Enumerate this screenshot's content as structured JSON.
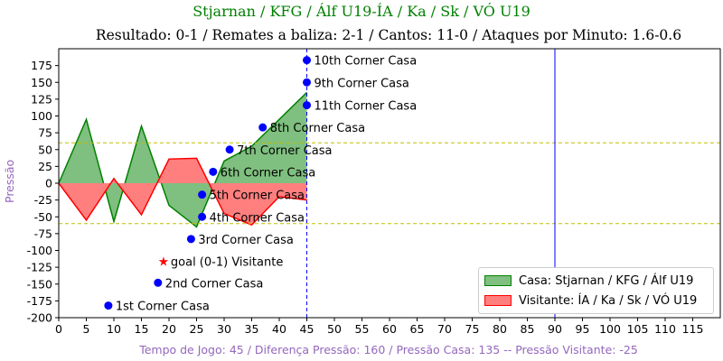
{
  "header": {
    "title": "Stjarnan / KFG / Álf U19-ÍA / Ka / Sk / VÓ U19",
    "subtitle": "Resultado: 0-1 / Remates a baliza: 2-1 / Cantos: 11-0 / Ataques por Minuto: 1.6-0.6"
  },
  "chart_data": {
    "type": "area",
    "title": "Stjarnan / KFG / Álf U19-ÍA / Ka / Sk / VÓ U19",
    "subtitle": "Resultado: 0-1 / Remates a baliza: 2-1 / Cantos: 11-0 / Ataques por Minuto: 1.6-0.6",
    "xlabel": "Tempo de Jogo: 45 / Diferença Pressão: 160 / Pressão Casa: 135 -- Pressão Visitante: -25",
    "ylabel": "Pressão",
    "xlim": [
      0,
      120
    ],
    "ylim": [
      -200,
      200
    ],
    "xticks": [
      0,
      5,
      10,
      15,
      20,
      25,
      30,
      35,
      40,
      45,
      50,
      55,
      60,
      65,
      70,
      75,
      80,
      85,
      90,
      95,
      100,
      105,
      110,
      115
    ],
    "yticks": [
      175,
      150,
      125,
      100,
      75,
      50,
      25,
      0,
      -25,
      -50,
      -75,
      -100,
      -125,
      -150,
      -175,
      -200
    ],
    "series": [
      {
        "name": "Casa: Stjarnan / KFG / Álf U19",
        "color": "#008000",
        "fill": "#7fbf7f",
        "x": [
          0,
          5,
          10,
          15,
          20,
          25,
          30,
          35,
          40,
          45
        ],
        "y": [
          0,
          95,
          -57,
          85,
          -33,
          -65,
          33,
          55,
          95,
          135
        ]
      },
      {
        "name": "Visitante: ÍA / Ka / Sk / VÓ U19",
        "color": "#ff0000",
        "fill": "#ff7f7f",
        "x": [
          0,
          5,
          10,
          15,
          20,
          25,
          30,
          35,
          40,
          45
        ],
        "y": [
          0,
          -55,
          7,
          -47,
          36,
          37,
          -45,
          -62,
          -20,
          -25
        ]
      }
    ],
    "hlines": [
      {
        "y": 60,
        "color": "#bfbf00",
        "style": "dashed"
      },
      {
        "y": -60,
        "color": "#bfbf00",
        "style": "dashed"
      }
    ],
    "vlines": [
      {
        "x": 45,
        "color": "#0000ff",
        "style": "dashed"
      },
      {
        "x": 90,
        "color": "#0000ff",
        "style": "solid"
      }
    ],
    "events": [
      {
        "x": 9,
        "y": -182,
        "label": "1st Corner Casa",
        "marker": "dot",
        "color": "#0000ff"
      },
      {
        "x": 18,
        "y": -148,
        "label": "2nd Corner Casa",
        "marker": "dot",
        "color": "#0000ff"
      },
      {
        "x": 19,
        "y": -116,
        "label": "goal (0-1) Visitante",
        "marker": "star",
        "color": "#ff0000"
      },
      {
        "x": 24,
        "y": -83,
        "label": "3rd Corner Casa",
        "marker": "dot",
        "color": "#0000ff"
      },
      {
        "x": 26,
        "y": -50,
        "label": "4th Corner Casa",
        "marker": "dot",
        "color": "#0000ff"
      },
      {
        "x": 26,
        "y": -17,
        "label": "5th Corner Casa",
        "marker": "dot",
        "color": "#0000ff"
      },
      {
        "x": 28,
        "y": 17,
        "label": "6th Corner Casa",
        "marker": "dot",
        "color": "#0000ff"
      },
      {
        "x": 31,
        "y": 50,
        "label": "7th Corner Casa",
        "marker": "dot",
        "color": "#0000ff"
      },
      {
        "x": 37,
        "y": 83,
        "label": "8th Corner Casa",
        "marker": "dot",
        "color": "#0000ff"
      },
      {
        "x": 45,
        "y": 183,
        "label": "10th Corner Casa",
        "marker": "dot",
        "color": "#0000ff"
      },
      {
        "x": 45,
        "y": 150,
        "label": "9th Corner Casa",
        "marker": "dot",
        "color": "#0000ff"
      },
      {
        "x": 45,
        "y": 116,
        "label": "11th Corner Casa",
        "marker": "dot",
        "color": "#0000ff"
      }
    ],
    "legend_position": "lower-right",
    "grid": false
  }
}
